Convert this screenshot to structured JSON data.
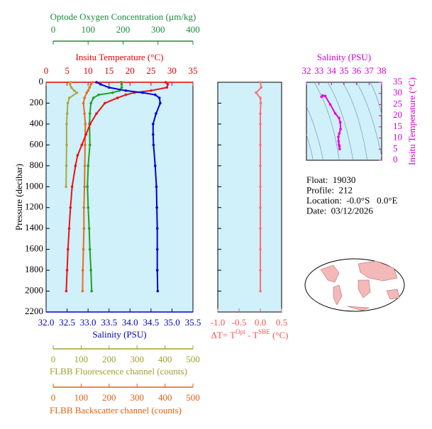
{
  "chart_data": [
    {
      "type": "line",
      "ylabel": "Pressure (decibar)",
      "ylim": [
        0,
        2200
      ],
      "yticks": [
        0,
        200,
        400,
        600,
        800,
        1000,
        1200,
        1400,
        1600,
        1800,
        2000,
        2200
      ],
      "y_inverted": true,
      "background": "#d0f0fa",
      "x_axes": [
        {
          "label": "Optode Oxygen Concentration (µm/kg)",
          "color": "#1a8a3a",
          "xlim": [
            0,
            400
          ],
          "xticks": [
            0,
            100,
            200,
            300,
            400
          ],
          "position": "top"
        },
        {
          "label": "Insitu Temperature (°C)",
          "color": "#e00000",
          "xlim": [
            0,
            35
          ],
          "xticks": [
            0,
            5,
            10,
            15,
            20,
            25,
            30,
            35
          ],
          "position": "top"
        },
        {
          "label": "Salinity (PSU)",
          "color": "#0000c0",
          "xlim": [
            32,
            35.5
          ],
          "xticks": [
            {
              "value": 32,
              "label": "32.0"
            },
            32.5,
            {
              "value": 33,
              "label": "33.0"
            },
            33.5,
            {
              "value": 34,
              "label": "34.0"
            },
            34.5,
            {
              "value": 35,
              "label": "35.0"
            },
            35.5
          ],
          "position": "bottom"
        },
        {
          "label": "FLBB Fluorescence channel (counts)",
          "color": "#a0a030",
          "xlim": [
            0,
            500
          ],
          "xticks": [
            0,
            100,
            200,
            300,
            400,
            500
          ],
          "position": "bottom"
        },
        {
          "label": "FLBB Backscatter channel (counts)",
          "color": "#e06010",
          "xlim": [
            0,
            500
          ],
          "xticks": [
            0,
            100,
            200,
            300,
            400,
            500
          ],
          "position": "bottom"
        }
      ],
      "series": [
        {
          "axis": 3,
          "color": "#a8a840",
          "x": [
            62,
            60,
            65,
            75,
            85,
            58,
            52,
            50,
            48,
            48,
            47,
            46
          ],
          "y": [
            0,
            20,
            50,
            80,
            100,
            150,
            200,
            300,
            400,
            600,
            800,
            1000
          ]
        },
        {
          "axis": 4,
          "color": "#e07020",
          "x": [
            140,
            135,
            130,
            125,
            120,
            112,
            108,
            112,
            115,
            114,
            113,
            112,
            110,
            110,
            108,
            106,
            105
          ],
          "y": [
            0,
            20,
            50,
            80,
            100,
            150,
            200,
            300,
            400,
            600,
            800,
            1000,
            1200,
            1400,
            1600,
            1800,
            2000
          ]
        },
        {
          "axis": 0,
          "color": "#22a022",
          "x": [
            195,
            196,
            196,
            190,
            170,
            130,
            115,
            108,
            105,
            104,
            105,
            100,
            98,
            100,
            103,
            105,
            108,
            110
          ],
          "y": [
            0,
            20,
            50,
            80,
            100,
            120,
            150,
            200,
            300,
            400,
            600,
            800,
            1000,
            1200,
            1400,
            1600,
            1800,
            2000
          ]
        },
        {
          "axis": 1,
          "color": "#ee1111",
          "x": [
            28.5,
            29,
            28.8,
            25,
            21,
            19,
            17,
            14,
            12,
            10.5,
            9.5,
            8.5,
            7.5,
            7,
            6.2,
            5.8,
            5.5,
            5.2,
            5,
            4.8
          ],
          "y": [
            0,
            20,
            50,
            80,
            100,
            120,
            150,
            200,
            300,
            400,
            500,
            600,
            700,
            800,
            1000,
            1200,
            1400,
            1600,
            1800,
            2000
          ]
        },
        {
          "axis": 2,
          "color": "#0000dd",
          "x": [
            33.2,
            33.3,
            33.5,
            33.9,
            34.3,
            34.6,
            34.7,
            34.72,
            34.62,
            34.55,
            34.55,
            34.56,
            34.6,
            34.63,
            34.64,
            34.65,
            34.65,
            34.65,
            34.66
          ],
          "y": [
            0,
            20,
            50,
            80,
            100,
            120,
            150,
            200,
            300,
            400,
            500,
            600,
            800,
            1000,
            1200,
            1400,
            1600,
            1800,
            2000
          ]
        }
      ]
    },
    {
      "type": "line",
      "xlabel_parts": [
        "ΔT= T",
        "Opt",
        " - T",
        "SBE",
        " (°C)"
      ],
      "label_color": "#ff5050",
      "background": "#d0f0fa",
      "xlim": [
        -1,
        0.5
      ],
      "xticks": [
        {
          "value": -1,
          "label": "-1.0"
        },
        -0.5,
        {
          "value": 0,
          "label": "0.0"
        },
        0.5
      ],
      "ylim": [
        0,
        2200
      ],
      "yticks": [
        0,
        200,
        400,
        600,
        800,
        1000,
        1200,
        1400,
        1600,
        1800,
        2000,
        2200
      ],
      "y_inverted": true,
      "series": [
        {
          "color": "#ff7070",
          "x": [
            0,
            0.02,
            -0.1,
            0,
            0.01,
            0,
            0,
            0,
            0,
            0,
            0,
            0,
            0,
            0,
            0
          ],
          "y": [
            0,
            50,
            100,
            150,
            200,
            300,
            400,
            600,
            800,
            1000,
            1200,
            1400,
            1600,
            1800,
            2000
          ]
        }
      ]
    },
    {
      "type": "line",
      "title": "Salinity (PSU)",
      "ylabel": "Insitu Temperature (°C)",
      "label_color": "#d000d0",
      "background": "#d0f0fa",
      "xlim": [
        32,
        38
      ],
      "xticks": [
        32,
        33,
        34,
        35,
        36,
        37,
        38
      ],
      "ylim": [
        0,
        35
      ],
      "yticks": [
        0,
        5,
        10,
        15,
        20,
        25,
        30,
        35
      ],
      "series": [
        {
          "color": "#e600e6",
          "x": [
            33.2,
            33.3,
            33.5,
            33.9,
            34.3,
            34.6,
            34.7,
            34.72,
            34.62,
            34.55,
            34.56,
            34.6,
            34.63,
            34.65
          ],
          "y": [
            28.5,
            29,
            28.8,
            25,
            21,
            19,
            17,
            14,
            12,
            10.5,
            8.5,
            7,
            6.2,
            5
          ]
        }
      ]
    }
  ],
  "info": [
    "Float:  19030",
    "Profile:  212",
    "Location:  -0.0°S   0.0°E",
    "Date:  03/12/2026"
  ]
}
